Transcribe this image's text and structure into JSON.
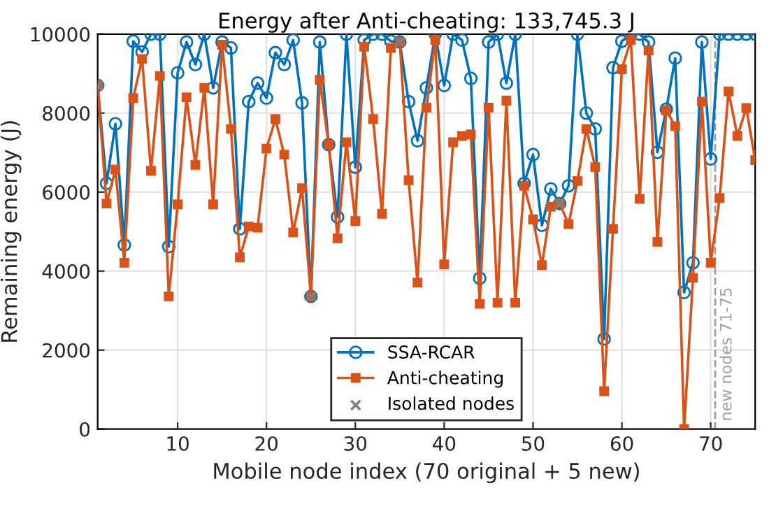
{
  "chart_data": {
    "type": "line",
    "title": "Energy after Anti-cheating: 133,745.3 J",
    "xlabel": "Mobile node index (70 original + 5 new)",
    "ylabel": "Remaining energy (J)",
    "x": [
      1,
      2,
      3,
      4,
      5,
      6,
      7,
      8,
      9,
      10,
      11,
      12,
      13,
      14,
      15,
      16,
      17,
      18,
      19,
      20,
      21,
      22,
      23,
      24,
      25,
      26,
      27,
      28,
      29,
      30,
      31,
      32,
      33,
      34,
      35,
      36,
      37,
      38,
      39,
      40,
      41,
      42,
      43,
      44,
      45,
      46,
      47,
      48,
      49,
      50,
      51,
      52,
      53,
      54,
      55,
      56,
      57,
      58,
      59,
      60,
      61,
      62,
      63,
      64,
      65,
      66,
      67,
      68,
      69,
      70,
      71,
      72,
      73,
      74,
      75
    ],
    "series": [
      {
        "name": "SSA-RCAR",
        "color": "#0072bd",
        "marker": "circle",
        "values": [
          8700,
          6220,
          7730,
          4660,
          9820,
          9550,
          10000,
          10000,
          4620,
          9020,
          9800,
          9230,
          10000,
          8640,
          9800,
          9650,
          5070,
          8290,
          8760,
          8380,
          9530,
          9230,
          9850,
          8260,
          3360,
          9800,
          7200,
          5370,
          10000,
          6630,
          9850,
          10000,
          10000,
          9820,
          9800,
          8290,
          7300,
          8640,
          10000,
          8700,
          10000,
          9850,
          8880,
          3820,
          9800,
          10000,
          8760,
          10000,
          6220,
          6950,
          5160,
          6080,
          5710,
          6160,
          10000,
          8000,
          7600,
          2280,
          9150,
          9820,
          10000,
          10000,
          9800,
          7010,
          8100,
          9390,
          3460,
          4210,
          9800,
          6840,
          10000,
          10000,
          10000,
          10000,
          10000
        ]
      },
      {
        "name": "Anti-cheating",
        "color": "#d95319",
        "marker": "square",
        "values": [
          8700,
          5710,
          6570,
          4210,
          8380,
          9370,
          6540,
          8940,
          3360,
          5690,
          8400,
          6690,
          8640,
          5690,
          9730,
          7600,
          4350,
          5130,
          5100,
          7100,
          7850,
          6950,
          4980,
          6100,
          3360,
          8840,
          7200,
          4830,
          7260,
          5270,
          9680,
          7850,
          5450,
          9650,
          9800,
          6300,
          3710,
          8140,
          9850,
          4170,
          7260,
          7420,
          7460,
          3170,
          8140,
          3200,
          8320,
          3200,
          6160,
          5310,
          4150,
          5630,
          5710,
          5190,
          6280,
          7600,
          6630,
          960,
          5070,
          9110,
          9850,
          5830,
          9590,
          4740,
          8070,
          7670,
          0,
          3830,
          8290,
          4210,
          5850,
          8550,
          7420,
          8130,
          6810
        ]
      },
      {
        "name": "Isolated nodes",
        "type": "scatter",
        "color": "#808080",
        "marker": "cross",
        "x": [
          1,
          25,
          35,
          53
        ],
        "values": [
          8700,
          3360,
          9800,
          5710
        ]
      }
    ],
    "xlim": [
      1,
      75
    ],
    "xticks": [
      10,
      20,
      30,
      40,
      50,
      60,
      70
    ],
    "ylim": [
      0,
      10000
    ],
    "yticks": [
      0,
      2000,
      4000,
      6000,
      8000,
      10000
    ],
    "ref_lines": [
      {
        "axis": "x",
        "value": 70.5,
        "label": "new nodes 71-75",
        "color": "#a0a0a0",
        "line_style": "dashed"
      }
    ],
    "grid": true,
    "legend": "bottom",
    "line_style": "solid"
  }
}
